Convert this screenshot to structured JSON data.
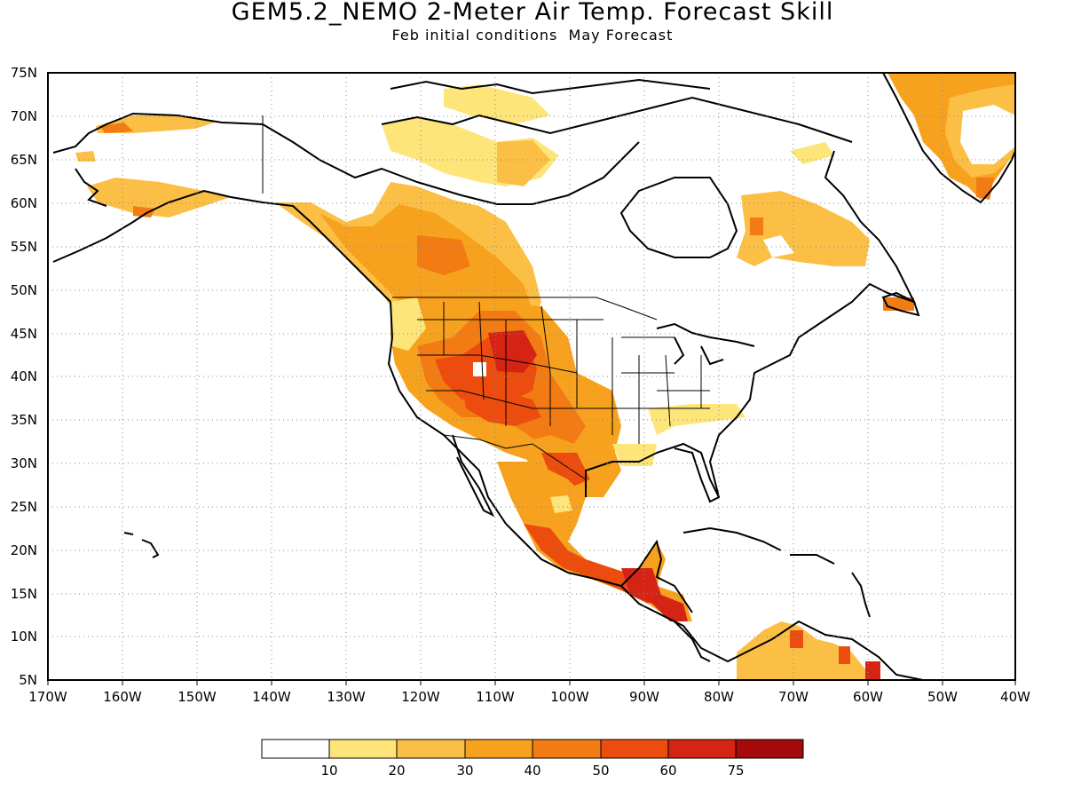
{
  "title": "GEM5.2_NEMO 2-Meter Air Temp. Forecast Skill",
  "subtitle": "Feb initial conditions  May Forecast",
  "map": {
    "lon_range": [
      -170,
      -40
    ],
    "lat_range": [
      5,
      75
    ],
    "lon_labels": [
      "170W",
      "160W",
      "150W",
      "140W",
      "130W",
      "120W",
      "110W",
      "100W",
      "90W",
      "80W",
      "70W",
      "60W",
      "50W",
      "40W"
    ],
    "lat_labels": [
      "5N",
      "10N",
      "15N",
      "20N",
      "25N",
      "30N",
      "35N",
      "40N",
      "45N",
      "50N",
      "55N",
      "60N",
      "65N",
      "70N",
      "75N"
    ],
    "grid": "dotted",
    "field": "forecast skill shading (orange/red) over North America"
  },
  "colorbar": {
    "colors": [
      "#ffffff",
      "#fde57a",
      "#fbbf45",
      "#f7a21e",
      "#f27b14",
      "#ec4d0f",
      "#d62414",
      "#a50a0a"
    ],
    "labels": [
      "10",
      "20",
      "30",
      "40",
      "50",
      "60",
      "75"
    ]
  }
}
